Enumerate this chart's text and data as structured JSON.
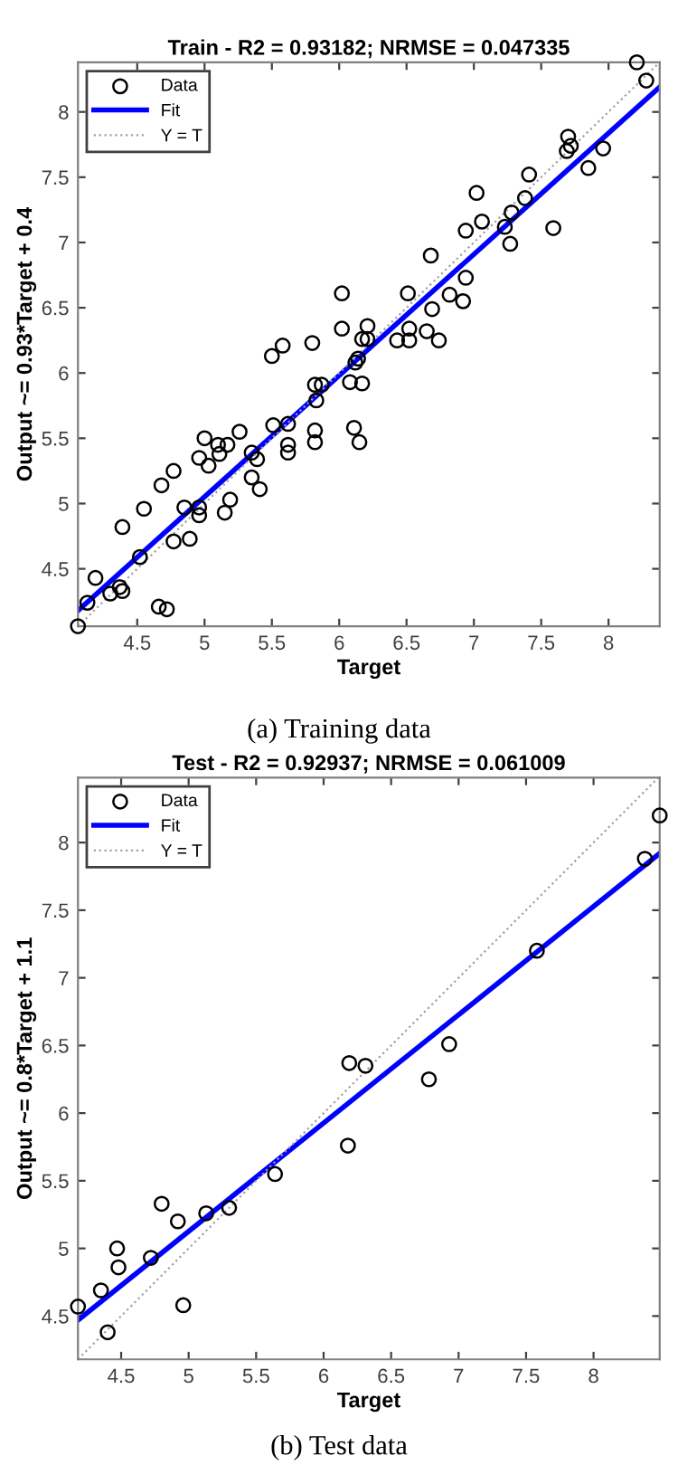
{
  "chart_data": [
    {
      "type": "scatter",
      "title": "Train - R2 = 0.93182; NRMSE = 0.047335",
      "xlabel": "Target",
      "ylabel": "Output ~= 0.93*Target + 0.4",
      "annotations": [
        "(a) Training data"
      ],
      "xlim": [
        4.06,
        8.38
      ],
      "ylim": [
        4.06,
        8.38
      ],
      "xticks": [
        4.5,
        5,
        5.5,
        6,
        6.5,
        7,
        7.5,
        8
      ],
      "yticks": [
        4.5,
        5,
        5.5,
        6,
        6.5,
        7,
        7.5,
        8
      ],
      "grid": false,
      "legend": "top left",
      "series": [
        {
          "name": "Data",
          "marker": "circle",
          "color": "#000000",
          "x": [
            8.21,
            8.28,
            7.7,
            7.72,
            7.69,
            7.96,
            7.85,
            7.41,
            7.38,
            7.28,
            7.23,
            7.27,
            7.59,
            7.02,
            7.06,
            6.94,
            6.68,
            6.94,
            6.92,
            6.82,
            6.69,
            6.51,
            6.02,
            6.02,
            6.21,
            6.52,
            6.65,
            6.17,
            6.21,
            6.43,
            6.52,
            6.74,
            5.8,
            5.58,
            5.5,
            6.14,
            5.82,
            5.87,
            6.08,
            6.17,
            6.12,
            5.83,
            5.82,
            5.82,
            6.11,
            6.15,
            5.51,
            5.62,
            5.62,
            5.62,
            5.35,
            5.39,
            5.35,
            5.41,
            5.26,
            5.17,
            5.1,
            5.11,
            5.0,
            4.96,
            5.03,
            4.77,
            4.68,
            4.55,
            4.85,
            4.96,
            4.96,
            5.19,
            5.15,
            4.39,
            4.77,
            4.89,
            4.52,
            4.19,
            4.37,
            4.39,
            4.3,
            4.13,
            4.66,
            4.72,
            4.06
          ],
          "values": [
            8.38,
            8.24,
            7.81,
            7.74,
            7.7,
            7.72,
            7.57,
            7.52,
            7.34,
            7.23,
            7.12,
            6.99,
            7.11,
            7.38,
            7.16,
            7.09,
            6.9,
            6.73,
            6.55,
            6.6,
            6.49,
            6.61,
            6.61,
            6.34,
            6.36,
            6.34,
            6.32,
            6.26,
            6.26,
            6.25,
            6.25,
            6.25,
            6.23,
            6.21,
            6.13,
            6.11,
            5.91,
            5.91,
            5.93,
            5.92,
            6.08,
            5.79,
            5.56,
            5.47,
            5.58,
            5.47,
            5.6,
            5.61,
            5.45,
            5.39,
            5.39,
            5.34,
            5.2,
            5.11,
            5.55,
            5.45,
            5.45,
            5.38,
            5.5,
            5.35,
            5.29,
            5.25,
            5.14,
            4.96,
            4.97,
            4.97,
            4.91,
            5.03,
            4.93,
            4.82,
            4.71,
            4.73,
            4.59,
            4.43,
            4.36,
            4.33,
            4.31,
            4.24,
            4.21,
            4.19,
            4.06
          ]
        },
        {
          "name": "Fit",
          "type": "line",
          "line_style": "solid",
          "color": "#0000ff",
          "x": [
            4.06,
            8.38
          ],
          "values": [
            4.18,
            8.19
          ]
        },
        {
          "name": "Y = T",
          "type": "line",
          "line_style": "dotted",
          "color": "#a0a0a0",
          "x": [
            4.06,
            8.38
          ],
          "values": [
            4.06,
            8.38
          ]
        }
      ]
    },
    {
      "type": "scatter",
      "title": "Test - R2 = 0.92937; NRMSE = 0.061009",
      "xlabel": "Target",
      "ylabel": "Output ~= 0.8*Target + 1.1",
      "annotations": [
        "(b) Test data"
      ],
      "xlim": [
        4.18,
        8.49
      ],
      "ylim": [
        4.18,
        8.48
      ],
      "xticks": [
        4.5,
        5,
        5.5,
        6,
        6.5,
        7,
        7.5,
        8
      ],
      "yticks": [
        4.5,
        5,
        5.5,
        6,
        6.5,
        7,
        7.5,
        8
      ],
      "grid": false,
      "legend": "top left",
      "series": [
        {
          "name": "Data",
          "marker": "circle",
          "color": "#000000",
          "x": [
            8.49,
            8.38,
            7.58,
            6.93,
            6.19,
            6.31,
            6.78,
            6.18,
            5.64,
            4.8,
            4.92,
            5.13,
            5.3,
            4.47,
            4.48,
            4.72,
            4.35,
            4.18,
            4.4,
            4.96
          ],
          "values": [
            8.2,
            7.88,
            7.2,
            6.51,
            6.37,
            6.35,
            6.25,
            5.76,
            5.55,
            5.33,
            5.2,
            5.26,
            5.3,
            5.0,
            4.86,
            4.93,
            4.69,
            4.57,
            4.38,
            4.58
          ]
        },
        {
          "name": "Fit",
          "type": "line",
          "line_style": "solid",
          "color": "#0000ff",
          "x": [
            4.18,
            8.49
          ],
          "values": [
            4.47,
            7.92
          ]
        },
        {
          "name": "Y = T",
          "type": "line",
          "line_style": "dotted",
          "color": "#a0a0a0",
          "x": [
            4.18,
            8.48
          ],
          "values": [
            4.18,
            8.48
          ]
        }
      ]
    }
  ]
}
